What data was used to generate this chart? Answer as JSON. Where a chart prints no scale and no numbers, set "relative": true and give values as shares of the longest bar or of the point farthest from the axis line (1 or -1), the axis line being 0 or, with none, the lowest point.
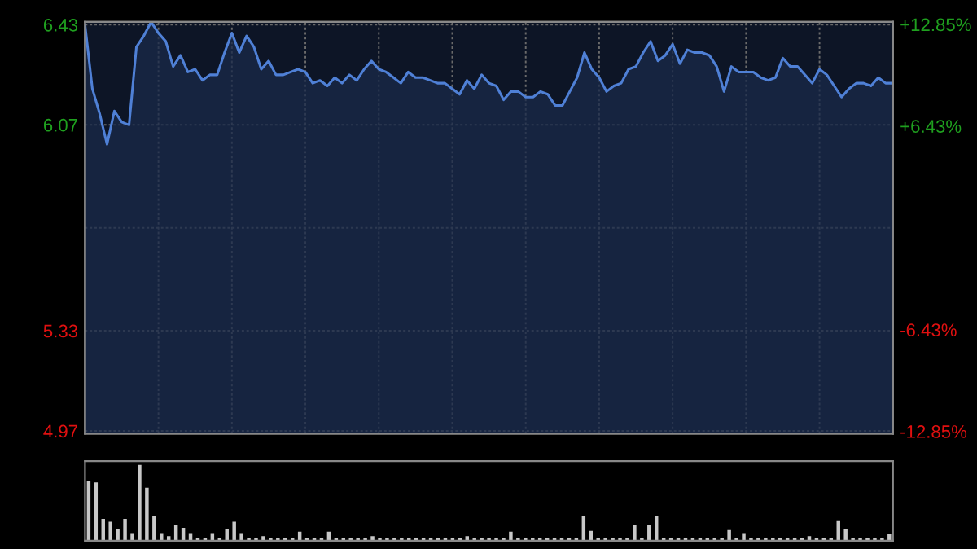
{
  "chart_data": [
    {
      "type": "area",
      "categories": [
        null,
        null,
        null,
        null,
        null,
        null,
        null,
        null,
        null,
        null,
        null,
        null,
        null,
        null,
        null,
        null,
        null,
        null,
        null,
        null,
        null,
        null,
        null,
        null,
        null,
        null,
        null,
        null,
        null,
        null,
        null,
        null,
        null,
        null,
        null,
        null,
        null,
        null,
        null,
        null,
        null,
        null,
        null,
        null,
        null,
        null,
        null,
        null,
        null,
        null,
        null,
        null,
        null,
        null,
        null,
        null,
        null,
        null,
        null,
        null,
        null,
        null,
        null,
        null,
        null,
        null,
        null,
        null,
        null,
        null,
        null,
        null,
        null,
        null,
        null,
        null,
        null,
        null,
        null,
        null,
        null,
        null,
        null,
        null,
        null,
        null,
        null,
        null,
        null,
        null,
        null,
        null,
        null,
        null,
        null,
        null,
        null,
        null,
        null,
        null,
        null,
        null,
        null,
        null,
        null,
        null,
        null,
        null,
        null,
        null,
        null
      ],
      "ylim": [
        4.96,
        6.44
      ],
      "yticks": [
        4.97,
        5.33,
        {
          "value": 5.7,
          "label": null
        },
        6.07,
        6.43
      ],
      "y2lim": [
        -13.0,
        13.0
      ],
      "y2ticks": [
        {
          "value": -12.85,
          "label": "-12.85%"
        },
        {
          "value": -6.43,
          "label": "-6.43%"
        },
        {
          "value": 0,
          "label": null
        },
        {
          "value": 6.43,
          "label": "+6.43%"
        },
        {
          "value": 12.85,
          "label": "+12.85%"
        }
      ],
      "grid": true,
      "tick_labels": "y",
      "series": [
        {
          "color": "#4f80d6",
          "values": [
            6.43,
            6.2,
            6.11,
            6.0,
            6.12,
            6.08,
            6.07,
            6.35,
            6.39,
            6.44,
            6.4,
            6.37,
            6.28,
            6.32,
            6.26,
            6.27,
            6.23,
            6.25,
            6.25,
            6.33,
            6.4,
            6.33,
            6.39,
            6.35,
            6.27,
            6.3,
            6.25,
            6.25,
            6.26,
            6.27,
            6.26,
            6.22,
            6.23,
            6.21,
            6.24,
            6.22,
            6.25,
            6.23,
            6.27,
            6.3,
            6.27,
            6.26,
            6.24,
            6.22,
            6.26,
            6.24,
            6.24,
            6.23,
            6.22,
            6.22,
            6.2,
            6.18,
            6.23,
            6.2,
            6.25,
            6.22,
            6.21,
            6.16,
            6.19,
            6.19,
            6.17,
            6.17,
            6.19,
            6.18,
            6.14,
            6.14,
            6.19,
            6.24,
            6.33,
            6.27,
            6.24,
            6.19,
            6.21,
            6.22,
            6.27,
            6.28,
            6.33,
            6.37,
            6.3,
            6.32,
            6.36,
            6.29,
            6.34,
            6.33,
            6.33,
            6.32,
            6.28,
            6.19,
            6.28,
            6.26,
            6.26,
            6.26,
            6.24,
            6.23,
            6.24,
            6.31,
            6.28,
            6.28,
            6.25,
            6.22,
            6.27,
            6.25,
            6.21,
            6.17,
            6.2,
            6.22,
            6.22,
            6.21,
            6.24,
            6.22,
            6.22
          ]
        }
      ]
    },
    {
      "type": "bar",
      "relative": true,
      "tick_labels": false,
      "grid": false,
      "categories": [
        null,
        null,
        null,
        null,
        null,
        null,
        null,
        null,
        null,
        null,
        null,
        null,
        null,
        null,
        null,
        null,
        null,
        null,
        null,
        null,
        null,
        null,
        null,
        null,
        null,
        null,
        null,
        null,
        null,
        null,
        null,
        null,
        null,
        null,
        null,
        null,
        null,
        null,
        null,
        null,
        null,
        null,
        null,
        null,
        null,
        null,
        null,
        null,
        null,
        null,
        null,
        null,
        null,
        null,
        null,
        null,
        null,
        null,
        null,
        null,
        null,
        null,
        null,
        null,
        null,
        null,
        null,
        null,
        null,
        null,
        null,
        null,
        null,
        null,
        null,
        null,
        null,
        null,
        null,
        null,
        null,
        null,
        null,
        null,
        null,
        null,
        null,
        null,
        null,
        null,
        null,
        null,
        null,
        null,
        null,
        null,
        null,
        null,
        null,
        null,
        null,
        null,
        null,
        null,
        null,
        null,
        null,
        null,
        null,
        null,
        null
      ],
      "series": [
        {
          "color": "#c8c8c8",
          "values": [
            0.79,
            0.77,
            0.29,
            0.25,
            0.16,
            0.29,
            0.1,
            1.0,
            0.7,
            0.33,
            0.1,
            0.06,
            0.21,
            0.17,
            0.1,
            0.03,
            0.03,
            0.1,
            0.03,
            0.15,
            0.25,
            0.1,
            0.03,
            0.03,
            0.06,
            0.03,
            0.03,
            0.03,
            0.03,
            0.12,
            0.03,
            0.03,
            0.03,
            0.12,
            0.03,
            0.03,
            0.03,
            0.03,
            0.03,
            0.06,
            0.03,
            0.03,
            0.03,
            0.03,
            0.03,
            0.03,
            0.03,
            0.03,
            0.03,
            0.03,
            0.03,
            0.03,
            0.06,
            0.03,
            0.03,
            0.03,
            0.03,
            0.03,
            0.12,
            0.03,
            0.03,
            0.03,
            0.03,
            0.04,
            0.03,
            0.03,
            0.03,
            0.03,
            0.32,
            0.13,
            0.03,
            0.03,
            0.03,
            0.03,
            0.03,
            0.21,
            0.03,
            0.21,
            0.33,
            0.03,
            0.03,
            0.03,
            0.03,
            0.03,
            0.03,
            0.03,
            0.03,
            0.03,
            0.14,
            0.03,
            0.1,
            0.03,
            0.03,
            0.03,
            0.03,
            0.03,
            0.03,
            0.03,
            0.03,
            0.06,
            0.03,
            0.03,
            0.03,
            0.26,
            0.15,
            0.03,
            0.03,
            0.03,
            0.03,
            0.03,
            0.09
          ]
        }
      ]
    }
  ]
}
